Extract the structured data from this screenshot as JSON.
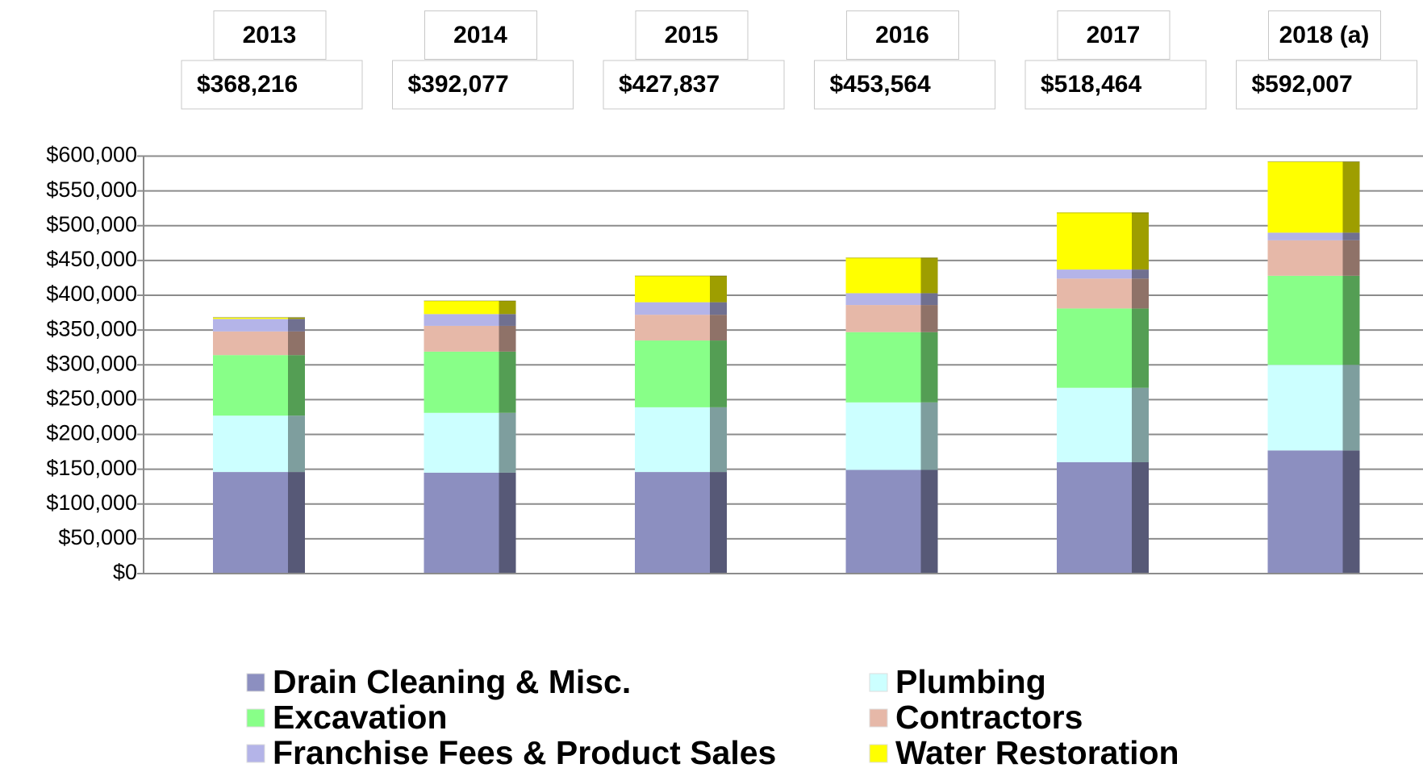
{
  "chart_data": {
    "type": "bar",
    "stacked": true,
    "categories": [
      "2013",
      "2014",
      "2015",
      "2016",
      "2017",
      "2018 (a)"
    ],
    "totals": [
      368216,
      392077,
      427837,
      453564,
      518464,
      592007
    ],
    "total_labels": [
      "$368,216",
      "$392,077",
      "$427,837",
      "$453,564",
      "$518,464",
      "$592,007"
    ],
    "series": [
      {
        "name": "Drain Cleaning & Misc.",
        "color": "#8c8fc0",
        "values": [
          146000,
          145000,
          146000,
          149000,
          160000,
          177000
        ]
      },
      {
        "name": "Plumbing",
        "color": "#ccffff",
        "values": [
          81000,
          86000,
          93000,
          97000,
          107000,
          123000
        ]
      },
      {
        "name": "Excavation",
        "color": "#88ff88",
        "values": [
          87000,
          88000,
          96000,
          101000,
          114000,
          128000
        ]
      },
      {
        "name": "Contractors",
        "color": "#e6b8a8",
        "values": [
          34000,
          37000,
          37000,
          39000,
          43000,
          51000
        ]
      },
      {
        "name": "Franchise Fees & Product Sales",
        "color": "#b4b4e8",
        "values": [
          18000,
          17000,
          18000,
          17000,
          13000,
          11000
        ]
      },
      {
        "name": "Water Restoration",
        "color": "#ffff00",
        "values": [
          2000,
          19000,
          38000,
          51000,
          82000,
          102000
        ]
      }
    ],
    "ylim": [
      0,
      600000
    ],
    "yticks": [
      {
        "value": 0,
        "label": "$0"
      },
      {
        "value": 50000,
        "label": "$50,000"
      },
      {
        "value": 100000,
        "label": "$100,000"
      },
      {
        "value": 150000,
        "label": "$150,000"
      },
      {
        "value": 200000,
        "label": "$200,000"
      },
      {
        "value": 250000,
        "label": "$250,000"
      },
      {
        "value": 300000,
        "label": "$300,000"
      },
      {
        "value": 350000,
        "label": "$350,000"
      },
      {
        "value": 400000,
        "label": "$400,000"
      },
      {
        "value": 450000,
        "label": "$450,000"
      },
      {
        "value": 500000,
        "label": "$500,000"
      },
      {
        "value": 550000,
        "label": "$550,000"
      },
      {
        "value": 600000,
        "label": "$600,000"
      }
    ],
    "grid": true,
    "legend": "bottom"
  }
}
